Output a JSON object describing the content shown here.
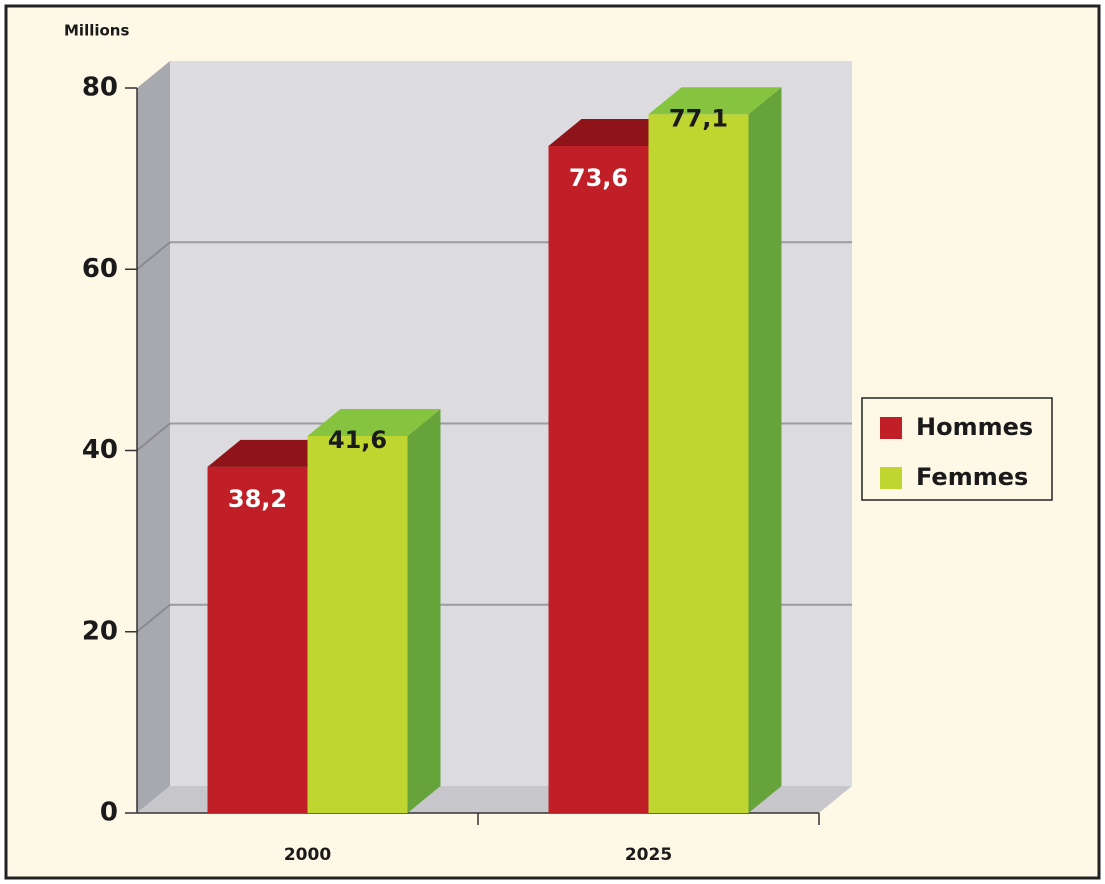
{
  "chart_data": {
    "type": "bar3d",
    "y_label": "Millions",
    "categories": [
      "2000",
      "2025"
    ],
    "series": [
      {
        "name": "Hommes",
        "color": "#c01f27",
        "values": [
          38.2,
          73.6
        ],
        "value_labels": [
          "38,2",
          "73,6"
        ]
      },
      {
        "name": "Femmes",
        "color": "#bfd630",
        "values": [
          41.6,
          77.1
        ],
        "value_labels": [
          "41,6",
          "77,1"
        ]
      }
    ],
    "ylim": [
      0,
      80
    ],
    "yticks": [
      0,
      20,
      40,
      60,
      80
    ],
    "grid": true,
    "legend": "right"
  }
}
